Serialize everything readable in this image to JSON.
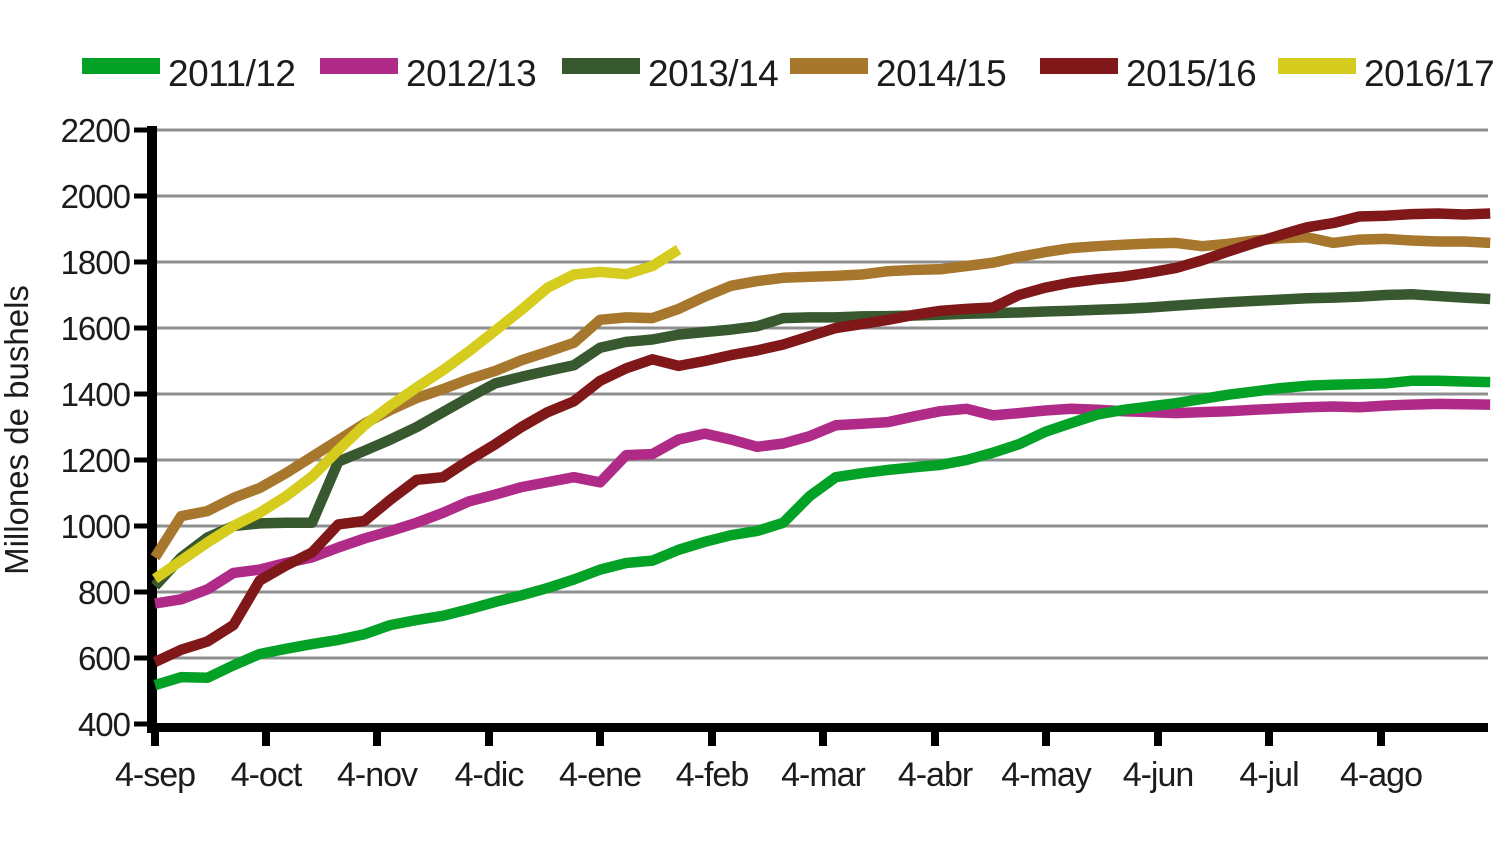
{
  "chart_data": {
    "type": "line",
    "title": "",
    "xlabel": "",
    "ylabel": "Millones de bushels",
    "ylim": [
      400,
      2200
    ],
    "y_ticks": [
      400,
      600,
      800,
      1000,
      1200,
      1400,
      1600,
      1800,
      2000,
      2200
    ],
    "x_tick_labels": [
      "4-sep",
      "4-oct",
      "4-nov",
      "4-dic",
      "4-ene",
      "4-feb",
      "4-mar",
      "4-abr",
      "4-may",
      "4-jun",
      "4-jul",
      "4-ago"
    ],
    "x_step": "weekly",
    "grid": "horizontal",
    "legend_position": "top",
    "series": [
      {
        "name": "2011/12",
        "color": "#04a127",
        "values": [
          518,
          542,
          540,
          578,
          612,
          628,
          642,
          655,
          672,
          700,
          715,
          728,
          748,
          770,
          790,
          812,
          838,
          868,
          888,
          895,
          928,
          952,
          972,
          985,
          1010,
          1090,
          1148,
          1160,
          1170,
          1178,
          1185,
          1200,
          1222,
          1248,
          1285,
          1312,
          1338,
          1352,
          1362,
          1372,
          1385,
          1398,
          1408,
          1418,
          1425,
          1428,
          1430,
          1432,
          1440,
          1440,
          1438,
          1436
        ]
      },
      {
        "name": "2012/13",
        "color": "#b02a87",
        "values": [
          765,
          778,
          808,
          858,
          868,
          888,
          905,
          935,
          962,
          985,
          1010,
          1040,
          1075,
          1095,
          1118,
          1133,
          1148,
          1132,
          1215,
          1218,
          1262,
          1280,
          1262,
          1240,
          1250,
          1272,
          1305,
          1310,
          1315,
          1332,
          1348,
          1355,
          1335,
          1342,
          1350,
          1355,
          1352,
          1348,
          1345,
          1342,
          1345,
          1348,
          1352,
          1356,
          1360,
          1362,
          1360,
          1365,
          1368,
          1370,
          1369,
          1368
        ]
      },
      {
        "name": "2013/14",
        "color": "#38592f",
        "values": [
          818,
          905,
          965,
          1000,
          1008,
          1010,
          1010,
          1195,
          1228,
          1262,
          1300,
          1345,
          1390,
          1432,
          1452,
          1470,
          1487,
          1540,
          1558,
          1565,
          1580,
          1588,
          1595,
          1605,
          1630,
          1632,
          1632,
          1635,
          1636,
          1638,
          1640,
          1643,
          1645,
          1647,
          1650,
          1652,
          1655,
          1658,
          1662,
          1668,
          1673,
          1678,
          1682,
          1686,
          1690,
          1692,
          1695,
          1700,
          1702,
          1697,
          1692,
          1688
        ]
      },
      {
        "name": "2014/15",
        "color": "#a6772c",
        "values": [
          905,
          1030,
          1045,
          1085,
          1115,
          1160,
          1210,
          1260,
          1310,
          1352,
          1388,
          1415,
          1445,
          1470,
          1502,
          1528,
          1555,
          1625,
          1632,
          1630,
          1658,
          1695,
          1728,
          1742,
          1752,
          1755,
          1758,
          1762,
          1772,
          1776,
          1778,
          1788,
          1798,
          1815,
          1830,
          1842,
          1848,
          1852,
          1856,
          1858,
          1848,
          1855,
          1865,
          1872,
          1875,
          1858,
          1868,
          1870,
          1865,
          1862,
          1862,
          1858
        ]
      },
      {
        "name": "2015/16",
        "color": "#801718",
        "values": [
          588,
          625,
          650,
          700,
          835,
          880,
          920,
          1005,
          1015,
          1080,
          1140,
          1148,
          1200,
          1248,
          1300,
          1345,
          1378,
          1440,
          1478,
          1505,
          1485,
          1500,
          1518,
          1532,
          1550,
          1575,
          1600,
          1612,
          1625,
          1640,
          1652,
          1658,
          1662,
          1700,
          1722,
          1738,
          1748,
          1756,
          1768,
          1782,
          1805,
          1832,
          1858,
          1882,
          1905,
          1918,
          1938,
          1940,
          1945,
          1947,
          1944,
          1947
        ]
      },
      {
        "name": "2016/17",
        "color": "#d6cc1d",
        "values": [
          840,
          895,
          950,
          1000,
          1040,
          1090,
          1150,
          1230,
          1305,
          1365,
          1420,
          1472,
          1530,
          1592,
          1655,
          1722,
          1762,
          1770,
          1763,
          1788,
          1838
        ]
      }
    ]
  },
  "colors": {
    "gridline": "#8f8f8f",
    "axis": "#000000",
    "text": "#1c1c1c",
    "background": "#ffffff"
  }
}
